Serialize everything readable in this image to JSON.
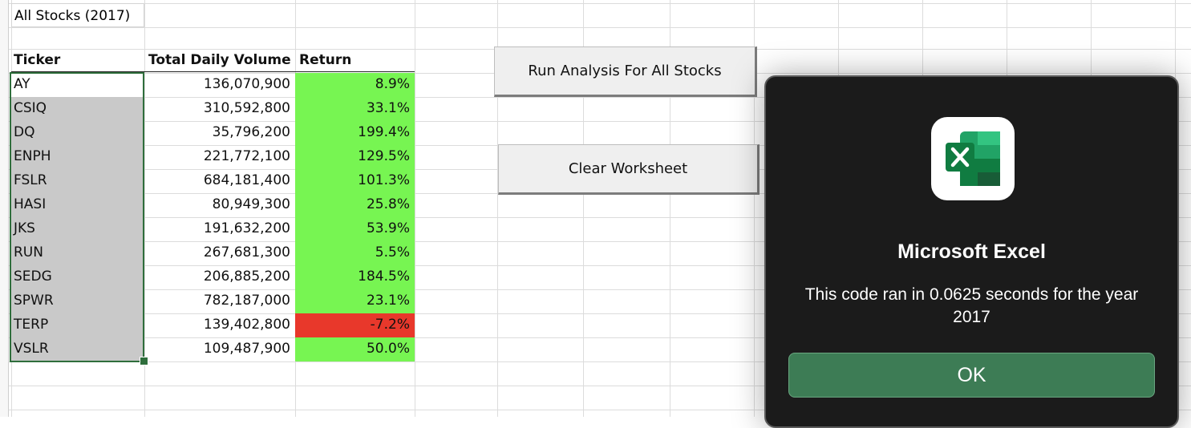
{
  "sheet": {
    "title_cell": "All Stocks (2017)",
    "headers": {
      "ticker": "Ticker",
      "volume": "Total Daily Volume",
      "return": "Return"
    },
    "rows": [
      {
        "ticker": "AY",
        "volume": "136,070,900",
        "return": "8.9%",
        "positive": true
      },
      {
        "ticker": "CSIQ",
        "volume": "310,592,800",
        "return": "33.1%",
        "positive": true
      },
      {
        "ticker": "DQ",
        "volume": "35,796,200",
        "return": "199.4%",
        "positive": true
      },
      {
        "ticker": "ENPH",
        "volume": "221,772,100",
        "return": "129.5%",
        "positive": true
      },
      {
        "ticker": "FSLR",
        "volume": "684,181,400",
        "return": "101.3%",
        "positive": true
      },
      {
        "ticker": "HASI",
        "volume": "80,949,300",
        "return": "25.8%",
        "positive": true
      },
      {
        "ticker": "JKS",
        "volume": "191,632,200",
        "return": "53.9%",
        "positive": true
      },
      {
        "ticker": "RUN",
        "volume": "267,681,300",
        "return": "5.5%",
        "positive": true
      },
      {
        "ticker": "SEDG",
        "volume": "206,885,200",
        "return": "184.5%",
        "positive": true
      },
      {
        "ticker": "SPWR",
        "volume": "782,187,000",
        "return": "23.1%",
        "positive": true
      },
      {
        "ticker": "TERP",
        "volume": "139,402,800",
        "return": "-7.2%",
        "positive": false
      },
      {
        "ticker": "VSLR",
        "volume": "109,487,900",
        "return": "50.0%",
        "positive": true
      }
    ]
  },
  "buttons": {
    "run_analysis": "Run Analysis For All Stocks",
    "clear": "Clear Worksheet"
  },
  "dialog": {
    "app_name": "Microsoft Excel",
    "message": "This code ran in 0.0625 seconds for the year 2017",
    "ok_label": "OK",
    "icon": "excel-app-icon"
  },
  "colors": {
    "positive_fill": "#77f552",
    "negative_fill": "#e8382b",
    "selection": "#2f6e3c",
    "dialog_bg": "#1b1b1b",
    "ok_button": "#3d7c55"
  }
}
